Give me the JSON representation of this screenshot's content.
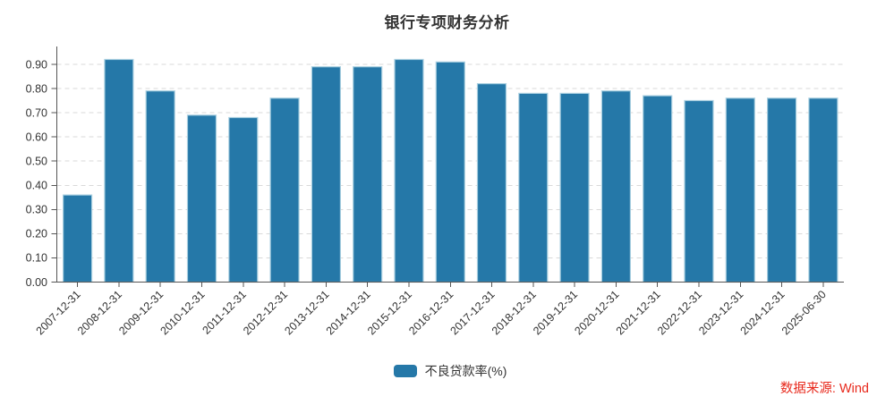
{
  "chart_data": {
    "type": "bar",
    "title": "银行专项财务分析",
    "categories": [
      "2007-12-31",
      "2008-12-31",
      "2009-12-31",
      "2010-12-31",
      "2011-12-31",
      "2012-12-31",
      "2013-12-31",
      "2014-12-31",
      "2015-12-31",
      "2016-12-31",
      "2017-12-31",
      "2018-12-31",
      "2019-12-31",
      "2020-12-31",
      "2021-12-31",
      "2022-12-31",
      "2023-12-31",
      "2024-12-31",
      "2025-06-30"
    ],
    "series": [
      {
        "name": "不良贷款率(%)",
        "values": [
          0.36,
          0.92,
          0.79,
          0.69,
          0.68,
          0.76,
          0.89,
          0.89,
          0.92,
          0.91,
          0.82,
          0.78,
          0.78,
          0.79,
          0.77,
          0.75,
          0.76,
          0.76,
          0.76
        ]
      }
    ],
    "xlabel": "",
    "ylabel": "",
    "ylim": [
      0,
      0.97
    ],
    "ytick_labels": [
      "0.00",
      "0.10",
      "0.20",
      "0.30",
      "0.40",
      "0.50",
      "0.60",
      "0.70",
      "0.80",
      "0.90"
    ],
    "grid": "horizontal dashed",
    "legend_position": "bottom-center"
  },
  "source_note": "数据来源: Wind",
  "colors": {
    "bar": "#2578a8",
    "bar_edge": "#a9cfe0",
    "grid": "#d9d9d9",
    "axis": "#555555",
    "text": "#333333",
    "source": "#e8291c"
  }
}
